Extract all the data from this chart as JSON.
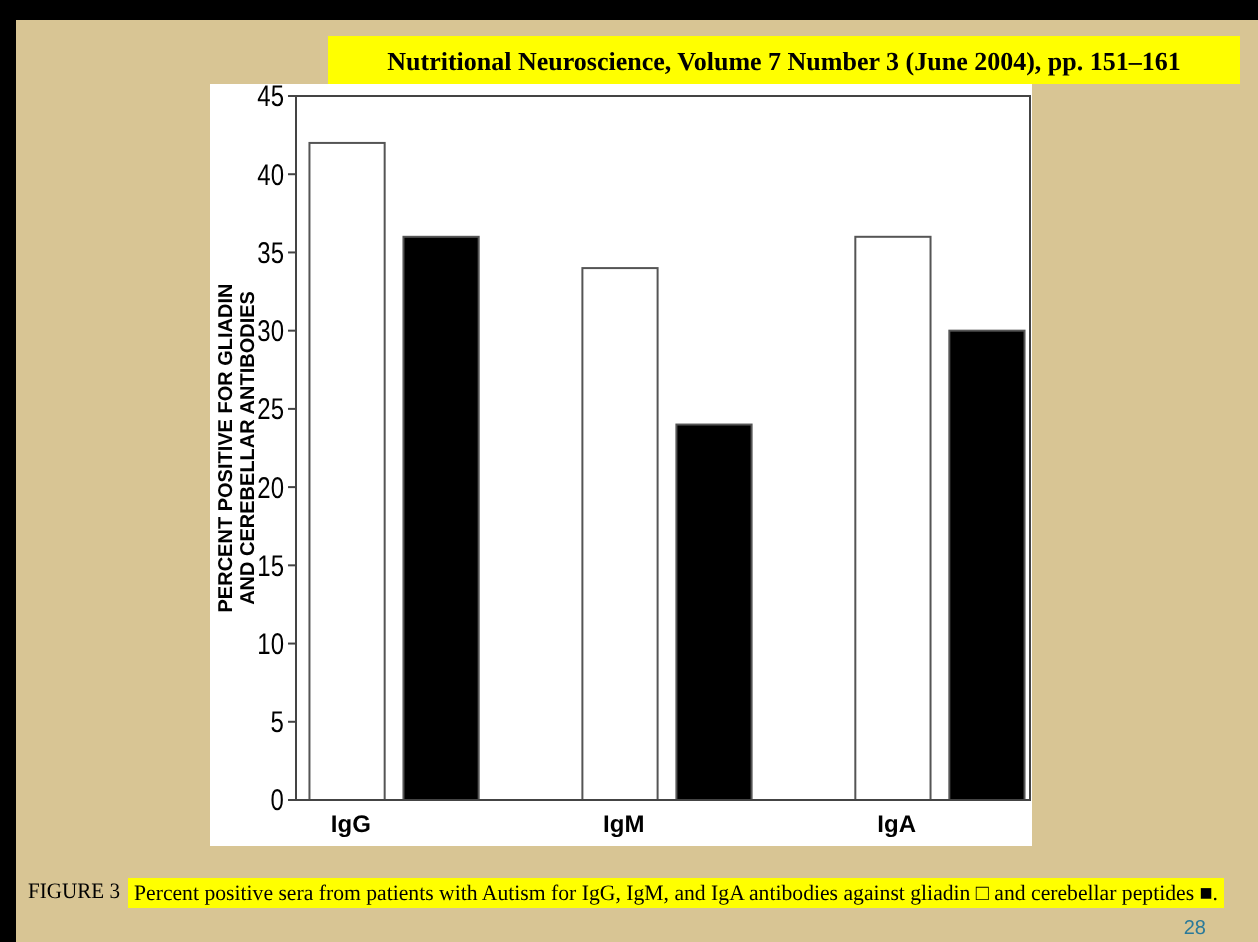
{
  "chart_data": {
    "type": "bar",
    "title": "Nutritional Neuroscience, Volume 7 Number 3 (June 2004), pp. 151–161",
    "ylabel": "PERCENT POSITIVE FOR GLIADIN AND CEREBELLAR ANTIBODIES",
    "categories": [
      "IgG",
      "IgM",
      "IgA"
    ],
    "series": [
      {
        "color": "#ffffff",
        "values": [
          42,
          34,
          36
        ]
      },
      {
        "color": "#000000",
        "values": [
          36,
          24,
          30
        ]
      }
    ],
    "ylim": [
      0,
      45
    ],
    "yticks": [
      0,
      5,
      10,
      15,
      20,
      25,
      30,
      35,
      40,
      45
    ],
    "grid": false,
    "annotations": [
      "FIGURE 3",
      "Percent positive sera from patients with Autism for IgG, IgM, and IgA antibodies against gliadin □ and cerebellar peptides ■.",
      "28"
    ]
  }
}
